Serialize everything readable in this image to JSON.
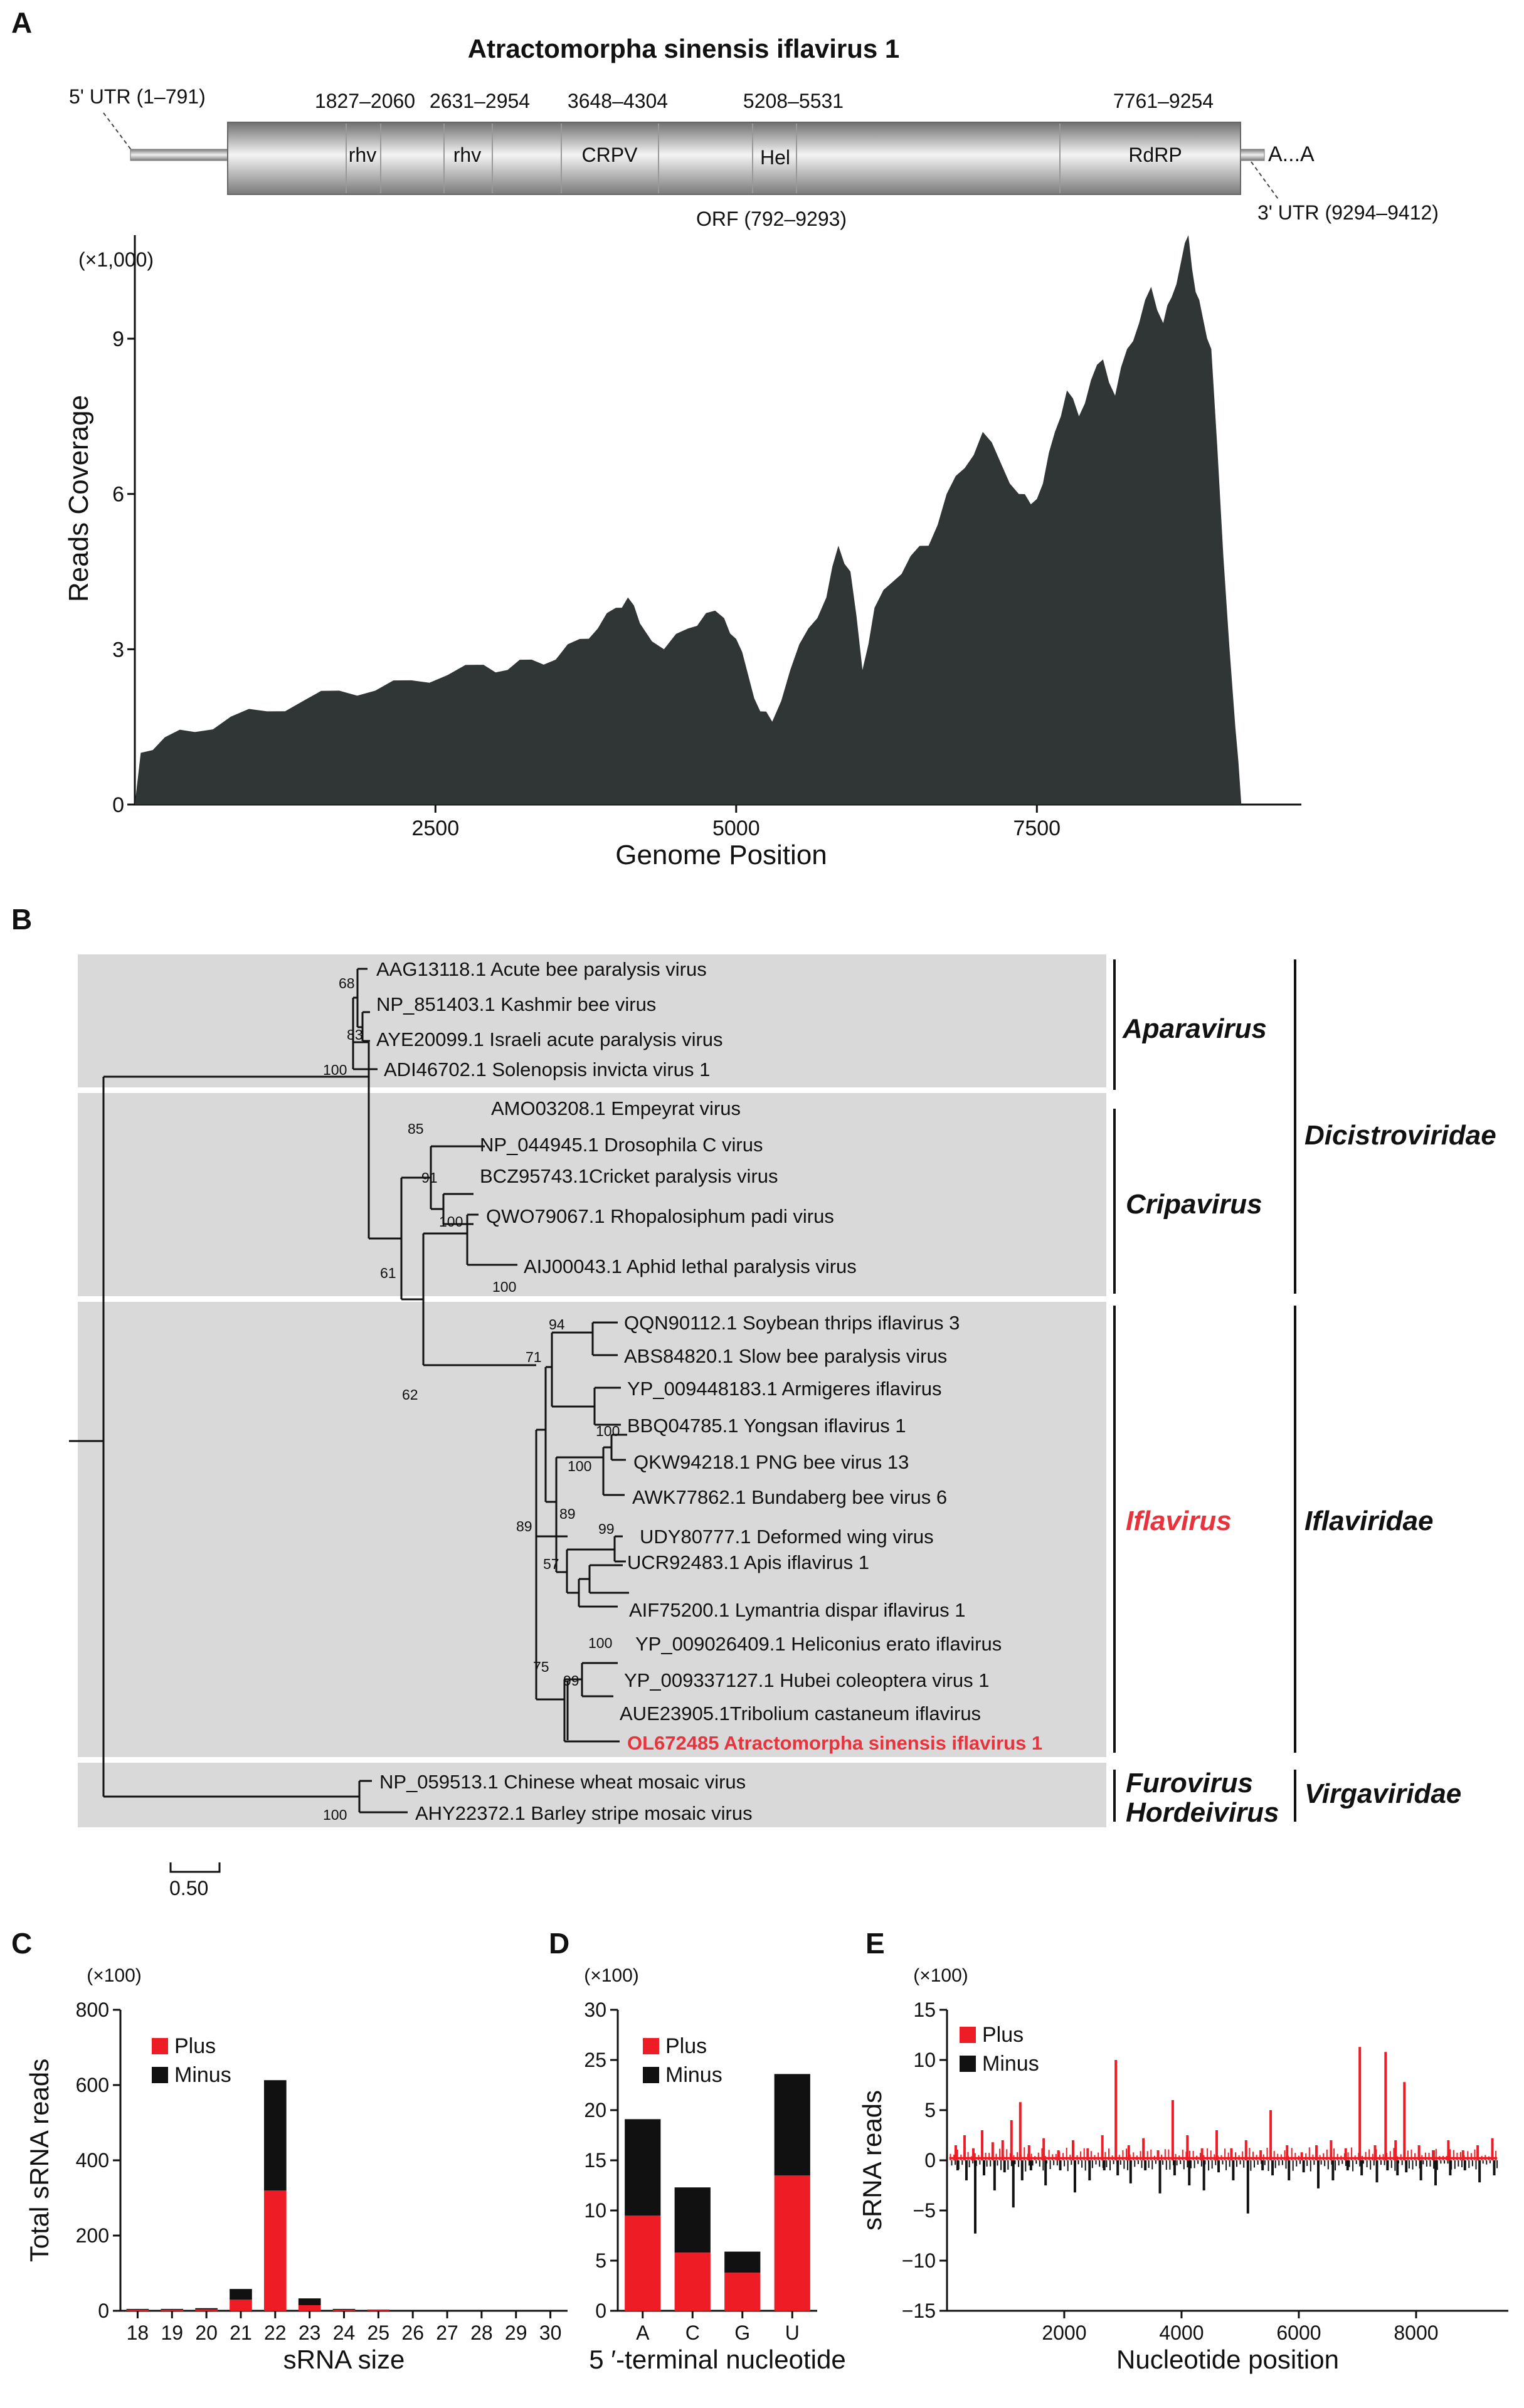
{
  "panels": {
    "a": "A",
    "b": "B",
    "c": "C",
    "d": "D",
    "e": "E"
  },
  "colors": {
    "plus": "#ee1c25",
    "minus": "#111111",
    "coverage": "#303535",
    "clade_bg": "#d9d9d9",
    "highlight": "#e8323c"
  },
  "panel_a": {
    "title": "Atractomorpha sinensis iflavirus 1",
    "utr5": "5' UTR (1–791)",
    "utr3": "3' UTR (9294–9412)",
    "polyA": "A...A",
    "orf": "ORF (792–9293)",
    "domains": [
      {
        "name": "rhv",
        "range": "1827–2060"
      },
      {
        "name": "rhv",
        "range": "2631–2954"
      },
      {
        "name": "CRPV",
        "range": "3648–4304"
      },
      {
        "name": "Hel",
        "range": "5208–5531"
      },
      {
        "name": "RdRP",
        "range": "7761–9254"
      }
    ],
    "y_multiplier": "(×1,000)",
    "ylabel": "Reads Coverage",
    "xlabel": "Genome Position",
    "yticks": [
      "0",
      "3",
      "6",
      "9"
    ],
    "xticks": [
      "2500",
      "5000",
      "7500"
    ]
  },
  "panel_b": {
    "leaves": [
      "AAG13118.1  Acute bee paralysis virus",
      "NP_851403.1 Kashmir bee virus",
      "AYE20099.1 Israeli acute paralysis virus",
      "ADI46702.1 Solenopsis invicta virus 1",
      "AMO03208.1 Empeyrat virus",
      "NP_044945.1 Drosophila C virus",
      "BCZ95743.1Cricket paralysis virus",
      "QWO79067.1 Rhopalosiphum padi virus",
      "AIJ00043.1 Aphid lethal paralysis virus",
      "QQN90112.1 Soybean thrips iflavirus 3",
      "ABS84820.1 Slow bee paralysis virus",
      "YP_009448183.1 Armigeres iflavirus",
      "BBQ04785.1 Yongsan iflavirus 1",
      "QKW94218.1 PNG bee virus 13",
      "AWK77862.1 Bundaberg bee virus 6",
      "UDY80777.1 Deformed wing virus",
      "UCR92483.1 Apis iflavirus 1",
      "AIF75200.1 Lymantria dispar iflavirus 1",
      "YP_009026409.1 Heliconius erato iflavirus",
      "YP_009337127.1 Hubei coleoptera virus 1",
      "AUE23905.1Tribolium castaneum iflavirus",
      "OL672485 Atractomorpha sinensis iflavirus 1",
      "NP_059513.1 Chinese wheat mosaic virus",
      "AHY22372.1 Barley stripe mosaic virus"
    ],
    "bootstrap": [
      "68",
      "83",
      "100",
      "85",
      "91",
      "100",
      "100",
      "61",
      "94",
      "71",
      "100",
      "62",
      "100",
      "89",
      "99",
      "57",
      "89",
      "100",
      "99",
      "75",
      "100"
    ],
    "genera": [
      "Aparavirus",
      "Cripavirus",
      "Iflavirus",
      "Furovirus",
      "Hordeivirus"
    ],
    "families": [
      "Dicistroviridae",
      "Iflaviridae",
      "Virgaviridae"
    ],
    "scale": "0.50"
  },
  "chart_data": [
    {
      "type": "area",
      "panel": "A",
      "title": "Atractomorpha sinensis iflavirus 1",
      "xlabel": "Genome Position",
      "ylabel": "Reads Coverage (×1,000)",
      "xlim": [
        1,
        9412
      ],
      "ylim": [
        0,
        11
      ],
      "x": [
        1,
        50,
        250,
        500,
        800,
        1100,
        1400,
        1700,
        2000,
        2300,
        2600,
        2900,
        3100,
        3300,
        3500,
        3700,
        3850,
        4000,
        4100,
        4200,
        4400,
        4600,
        4750,
        4900,
        5000,
        5100,
        5200,
        5300,
        5450,
        5600,
        5750,
        5850,
        5950,
        6050,
        6150,
        6300,
        6450,
        6600,
        6750,
        6900,
        7050,
        7200,
        7350,
        7450,
        7550,
        7650,
        7750,
        7850,
        7950,
        8050,
        8150,
        8250,
        8350,
        8450,
        8550,
        8620,
        8700,
        8760,
        8820,
        8880,
        8950,
        9050,
        9150,
        9200
      ],
      "y": [
        0,
        1.0,
        1.3,
        1.4,
        1.7,
        1.8,
        2.0,
        2.2,
        2.2,
        2.4,
        2.5,
        2.7,
        2.6,
        2.8,
        2.8,
        3.2,
        3.4,
        3.8,
        4.0,
        3.5,
        3.0,
        3.4,
        3.7,
        3.6,
        3.2,
        2.5,
        1.8,
        1.6,
        2.6,
        3.4,
        4.0,
        5.0,
        4.5,
        2.6,
        3.8,
        4.3,
        4.8,
        5.0,
        6.0,
        6.5,
        7.2,
        6.6,
        6.0,
        5.8,
        6.2,
        7.2,
        8.0,
        7.5,
        8.2,
        8.6,
        7.9,
        8.8,
        9.3,
        10.0,
        9.3,
        9.8,
        10.5,
        11.0,
        9.9,
        9.4,
        8.8,
        4.8,
        1.5,
        0
      ]
    },
    {
      "type": "bar",
      "panel": "C",
      "y_multiplier": "(×100)",
      "xlabel": "sRNA size",
      "ylabel": "Total sRNA reads",
      "ylim": [
        0,
        800
      ],
      "yticks": [
        "0",
        "200",
        "400",
        "600",
        "800"
      ],
      "categories": [
        "18",
        "19",
        "20",
        "21",
        "22",
        "23",
        "24",
        "25",
        "26",
        "27",
        "28",
        "29",
        "30"
      ],
      "series": [
        {
          "name": "Plus",
          "values": [
            3,
            3,
            4,
            30,
            320,
            15,
            3,
            2,
            0,
            0,
            0,
            0,
            0
          ]
        },
        {
          "name": "Minus",
          "values": [
            2,
            2,
            3,
            28,
            293,
            18,
            2,
            1,
            0,
            0,
            0,
            0,
            0
          ]
        }
      ]
    },
    {
      "type": "bar",
      "panel": "D",
      "y_multiplier": "(×100)",
      "xlabel": "5 ′-terminal nucleotide",
      "ylabel": "",
      "ylim": [
        0,
        30
      ],
      "yticks": [
        "0",
        "5",
        "10",
        "15",
        "20",
        "25",
        "30"
      ],
      "categories": [
        "A",
        "C",
        "G",
        "U"
      ],
      "series": [
        {
          "name": "Plus",
          "values": [
            9.5,
            5.8,
            3.8,
            13.5
          ]
        },
        {
          "name": "Minus",
          "values": [
            9.6,
            6.5,
            2.1,
            10.1
          ]
        }
      ]
    },
    {
      "type": "bar",
      "panel": "E",
      "y_multiplier": "(×100)",
      "xlabel": "Nucleotide position",
      "ylabel": "sRNA reads",
      "ylim": [
        -15,
        15
      ],
      "xlim": [
        1,
        9412
      ],
      "yticks": [
        "−15",
        "−10",
        "−5",
        "0",
        "5",
        "10",
        "15"
      ],
      "xticks": [
        "2000",
        "4000",
        "6000",
        "8000"
      ],
      "x": [
        150,
        300,
        450,
        600,
        780,
        950,
        1100,
        1250,
        1400,
        1650,
        1900,
        2150,
        2400,
        2650,
        2880,
        3100,
        3350,
        3600,
        3850,
        4100,
        4350,
        4600,
        4850,
        5100,
        5350,
        5520,
        5800,
        6050,
        6300,
        6550,
        6800,
        7040,
        7300,
        7480,
        7650,
        7800,
        8050,
        8300,
        8550,
        8800,
        9050,
        9300
      ],
      "series": [
        {
          "name": "Plus",
          "values": [
            1.5,
            2.5,
            1.2,
            3.0,
            1.8,
            2.0,
            4.0,
            5.8,
            1.5,
            2.2,
            1.0,
            2.0,
            1.2,
            2.5,
            10.0,
            1.5,
            2.2,
            1.0,
            6.0,
            2.5,
            1.2,
            3.0,
            1.2,
            2.0,
            1.0,
            5.0,
            1.5,
            0.8,
            1.5,
            2.0,
            1.2,
            11.3,
            1.5,
            10.8,
            2.0,
            7.8,
            1.5,
            1.0,
            2.0,
            1.0,
            1.5,
            2.2
          ]
        },
        {
          "name": "Minus",
          "values": [
            -1.0,
            -2.0,
            -7.3,
            -1.5,
            -3.0,
            -1.2,
            -4.7,
            -2.0,
            -1.0,
            -2.5,
            -1.0,
            -3.2,
            -2.0,
            -1.0,
            -1.5,
            -2.3,
            -1.0,
            -3.3,
            -1.5,
            -2.5,
            -3.0,
            -1.2,
            -2.0,
            -5.3,
            -1.0,
            -1.5,
            -2.0,
            -1.2,
            -2.8,
            -2.0,
            -1.0,
            -1.5,
            -2.2,
            -1.0,
            -1.5,
            -1.2,
            -2.0,
            -2.5,
            -1.5,
            -1.0,
            -2.2,
            -1.5
          ]
        }
      ]
    }
  ]
}
